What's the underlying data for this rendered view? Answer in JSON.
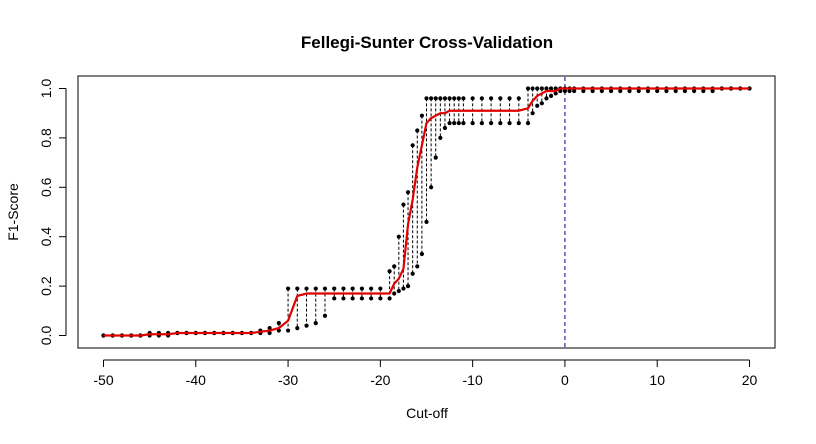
{
  "chart_data": {
    "type": "line",
    "title": "Fellegi-Sunter Cross-Validation",
    "xlabel": "Cut-off",
    "ylabel": "F1-Score",
    "xlim": [
      -50,
      20
    ],
    "ylim": [
      0.0,
      1.0
    ],
    "x_ticks": [
      -50,
      -40,
      -30,
      -20,
      -10,
      0,
      10,
      20
    ],
    "x_tick_labels": [
      "-50",
      "-40",
      "-30",
      "-20",
      "-10",
      "0",
      "10",
      "20"
    ],
    "y_ticks": [
      0.0,
      0.2,
      0.4,
      0.6,
      0.8,
      1.0
    ],
    "y_tick_labels": [
      "0.0",
      "0.2",
      "0.4",
      "0.6",
      "0.8",
      "1.0"
    ],
    "reference_line": {
      "x": 0,
      "style": "dashed",
      "color": "#00008b"
    },
    "colors": {
      "mean": "#e00000",
      "points": "#000000",
      "range": "#000000",
      "axes": "#000000"
    },
    "series": [
      {
        "x": [
          -50,
          -49,
          -48,
          -47,
          -46,
          -45,
          -44,
          -43,
          -42,
          -41,
          -40,
          -39,
          -38,
          -37,
          -36,
          -35,
          -34,
          -33,
          -32,
          -31,
          -30,
          -29,
          -28,
          -27,
          -26,
          -25,
          -24,
          -23,
          -22,
          -21,
          -20,
          -19,
          -18.5,
          -18,
          -17.5,
          -17,
          -16.5,
          -16,
          -15.5,
          -15,
          -14.5,
          -14,
          -13.5,
          -13,
          -12.5,
          -12,
          -11.5,
          -11,
          -10,
          -9,
          -8,
          -7,
          -6,
          -5,
          -4,
          -3.5,
          -3,
          -2.5,
          -2,
          -1.5,
          -1,
          -0.5,
          0,
          0.5,
          1,
          2,
          3,
          4,
          5,
          6,
          7,
          8,
          9,
          10,
          11,
          12,
          13,
          14,
          15,
          16,
          17,
          18,
          19,
          20
        ],
        "mean": [
          0.0,
          0.0,
          0.0,
          0.0,
          0.0,
          0.005,
          0.005,
          0.005,
          0.01,
          0.01,
          0.01,
          0.01,
          0.01,
          0.01,
          0.01,
          0.01,
          0.01,
          0.015,
          0.02,
          0.03,
          0.06,
          0.16,
          0.17,
          0.17,
          0.17,
          0.17,
          0.17,
          0.17,
          0.17,
          0.17,
          0.17,
          0.17,
          0.21,
          0.23,
          0.27,
          0.45,
          0.55,
          0.68,
          0.77,
          0.86,
          0.88,
          0.89,
          0.9,
          0.9,
          0.91,
          0.91,
          0.91,
          0.91,
          0.91,
          0.91,
          0.91,
          0.91,
          0.91,
          0.91,
          0.92,
          0.95,
          0.97,
          0.98,
          0.99,
          0.99,
          0.99,
          1.0,
          1.0,
          1.0,
          1.0,
          1.0,
          1.0,
          1.0,
          1.0,
          1.0,
          1.0,
          1.0,
          1.0,
          1.0,
          1.0,
          1.0,
          1.0,
          1.0,
          1.0,
          1.0,
          1.0,
          1.0,
          1.0,
          1.0
        ],
        "upper": [
          0.0,
          0.0,
          0.0,
          0.0,
          0.0,
          0.01,
          0.01,
          0.01,
          0.01,
          0.01,
          0.01,
          0.01,
          0.01,
          0.01,
          0.01,
          0.01,
          0.01,
          0.02,
          0.03,
          0.05,
          0.19,
          0.19,
          0.19,
          0.19,
          0.19,
          0.19,
          0.19,
          0.19,
          0.19,
          0.19,
          0.19,
          0.26,
          0.28,
          0.4,
          0.53,
          0.58,
          0.77,
          0.83,
          0.89,
          0.96,
          0.96,
          0.96,
          0.96,
          0.96,
          0.96,
          0.96,
          0.96,
          0.96,
          0.96,
          0.96,
          0.96,
          0.96,
          0.96,
          0.96,
          1.0,
          1.0,
          1.0,
          1.0,
          1.0,
          1.0,
          1.0,
          1.0,
          1.0,
          1.0,
          1.0,
          1.0,
          1.0,
          1.0,
          1.0,
          1.0,
          1.0,
          1.0,
          1.0,
          1.0,
          1.0,
          1.0,
          1.0,
          1.0,
          1.0,
          1.0,
          1.0,
          1.0,
          1.0,
          1.0
        ],
        "lower": [
          0.0,
          0.0,
          0.0,
          0.0,
          0.0,
          0.0,
          0.0,
          0.0,
          0.01,
          0.01,
          0.01,
          0.01,
          0.01,
          0.01,
          0.01,
          0.01,
          0.01,
          0.01,
          0.01,
          0.02,
          0.02,
          0.03,
          0.04,
          0.05,
          0.08,
          0.15,
          0.15,
          0.15,
          0.15,
          0.15,
          0.15,
          0.15,
          0.17,
          0.18,
          0.19,
          0.2,
          0.25,
          0.28,
          0.33,
          0.46,
          0.6,
          0.72,
          0.8,
          0.84,
          0.86,
          0.86,
          0.86,
          0.86,
          0.86,
          0.86,
          0.86,
          0.86,
          0.86,
          0.86,
          0.86,
          0.9,
          0.93,
          0.94,
          0.96,
          0.97,
          0.98,
          0.99,
          0.99,
          0.99,
          0.99,
          0.99,
          0.99,
          0.99,
          0.99,
          0.99,
          0.99,
          0.99,
          0.99,
          0.99,
          0.99,
          0.99,
          0.99,
          0.99,
          0.99,
          0.99,
          1.0,
          1.0,
          1.0,
          1.0
        ]
      }
    ]
  }
}
